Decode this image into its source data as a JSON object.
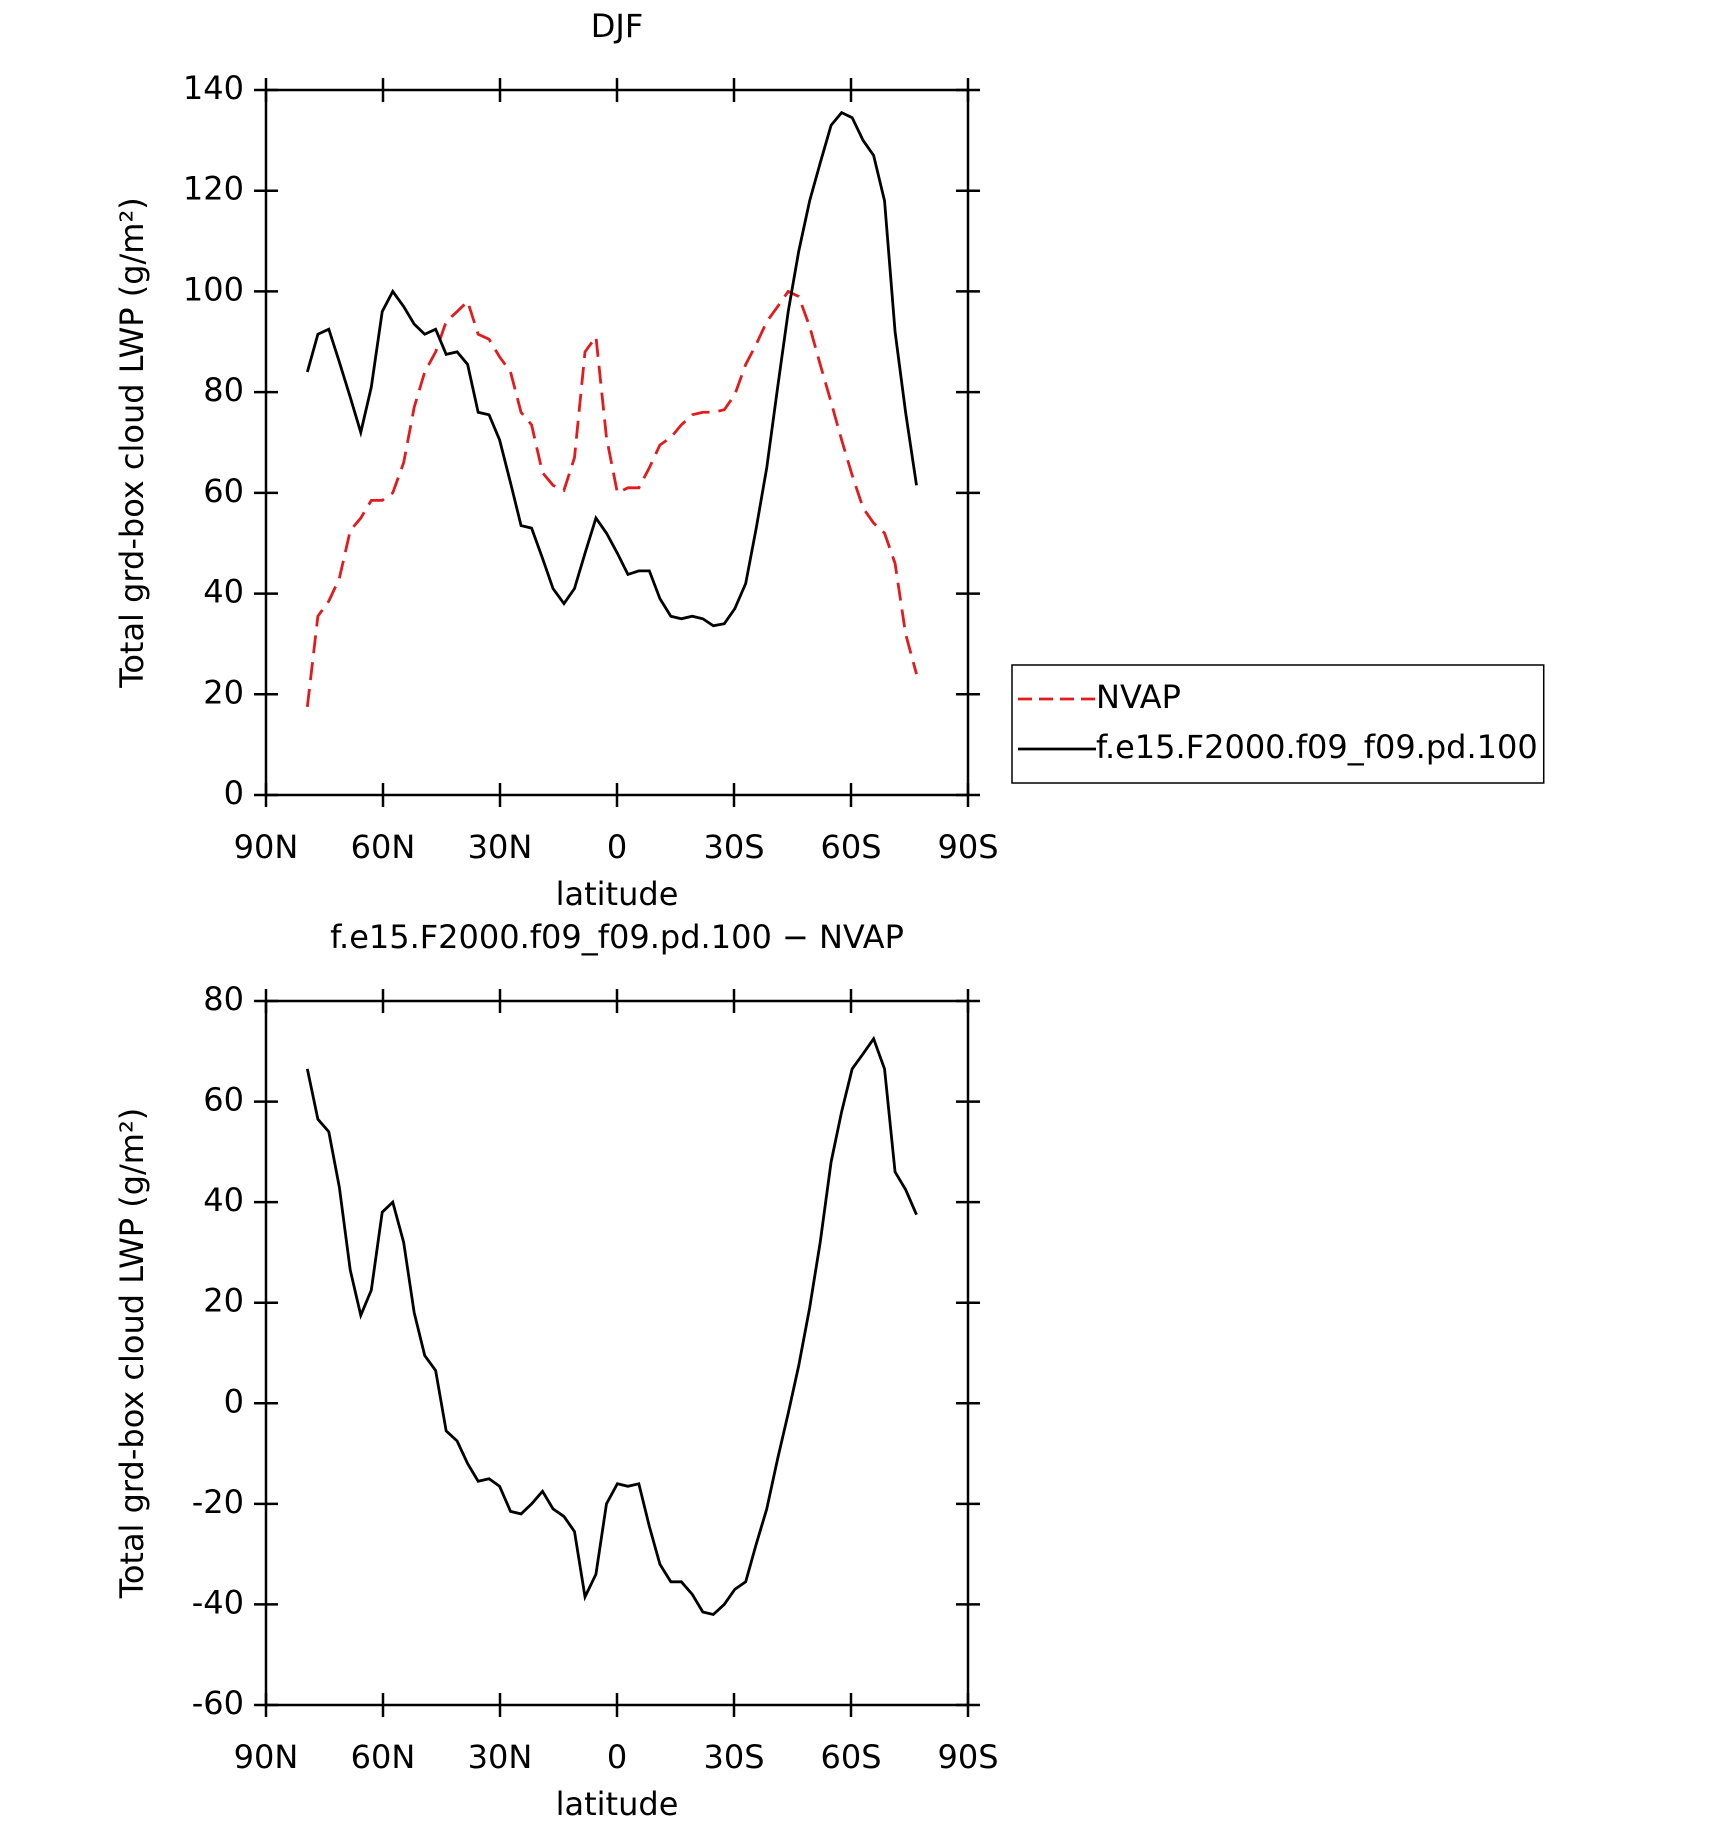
{
  "chart_data": [
    {
      "type": "line",
      "title": "DJF",
      "xlabel": "latitude",
      "ylabel": "Total grd-box cloud LWP (g/m²)",
      "x": [
        79.4,
        76.7,
        73.9,
        71.2,
        68.4,
        65.7,
        63,
        60.2,
        57.5,
        54.7,
        52,
        49.3,
        46.5,
        43.8,
        41,
        38.3,
        35.6,
        32.8,
        30.1,
        27.3,
        24.6,
        21.9,
        19.1,
        16.4,
        13.6,
        10.9,
        8.2,
        5.4,
        2.7,
        -0.1,
        -2.8,
        -5.6,
        -8.3,
        -11,
        -13.8,
        -16.5,
        -19.3,
        -22,
        -24.7,
        -27.5,
        -30.2,
        -33,
        -35.7,
        -38.4,
        -41.2,
        -43.9,
        -46.6,
        -49.4,
        -52.1,
        -54.9,
        -57.6,
        -60.3,
        -63.1,
        -65.8,
        -68.6,
        -71.3,
        -74,
        -76.8
      ],
      "series": [
        {
          "name": "NVAP",
          "color": "#e41a1c",
          "linestyle": "dashed",
          "values": [
            17.5,
            35.5,
            38.5,
            43,
            52.5,
            55,
            58.5,
            58.5,
            60,
            66,
            77,
            84,
            88,
            94,
            96,
            98,
            91.5,
            90.5,
            87,
            84,
            76,
            73.5,
            64,
            61.5,
            60.5,
            67,
            88,
            91,
            71,
            60,
            61,
            61,
            65,
            69.5,
            71,
            73.5,
            75.5,
            76,
            76,
            76.5,
            79.5,
            85.5,
            89.5,
            94,
            97,
            100,
            99,
            93,
            85.5,
            78,
            70.5,
            63.5,
            57,
            54,
            52,
            46,
            32,
            24
          ]
        },
        {
          "name": "f.e15.F2000.f09_f09.pd.100",
          "color": "#000000",
          "linestyle": "solid",
          "values": [
            84,
            91.5,
            92.5,
            86,
            79,
            72,
            81,
            96,
            100,
            97,
            93.5,
            91.5,
            92.5,
            87.5,
            88,
            85.5,
            76,
            75.5,
            70.5,
            62,
            53.5,
            53,
            47,
            41,
            38,
            41,
            48,
            55,
            52,
            48,
            43.8,
            44.5,
            44.5,
            39,
            35.5,
            35,
            35.5,
            35,
            33.6,
            34,
            37,
            42,
            53,
            65,
            81,
            96,
            108,
            118,
            125.5,
            133,
            135.5,
            134.5,
            130,
            127,
            118,
            92,
            76,
            61.5
          ]
        }
      ],
      "xlim": [
        90,
        -90
      ],
      "xticks": [
        {
          "value": 90,
          "label": "90N"
        },
        {
          "value": 60,
          "label": "60N"
        },
        {
          "value": 30,
          "label": "30N"
        },
        0,
        {
          "value": -30,
          "label": "30S"
        },
        {
          "value": -60,
          "label": "60S"
        },
        {
          "value": -90,
          "label": "90S"
        }
      ],
      "ylim": [
        0,
        140
      ],
      "yticks": [
        0,
        20,
        40,
        60,
        80,
        100,
        120,
        140
      ],
      "legend": "right"
    },
    {
      "type": "line",
      "title": "f.e15.F2000.f09_f09.pd.100 − NVAP",
      "xlabel": "latitude",
      "ylabel": "Total grd-box cloud LWP (g/m²)",
      "x": [
        79.4,
        76.7,
        73.9,
        71.2,
        68.4,
        65.7,
        63,
        60.2,
        57.5,
        54.7,
        52,
        49.3,
        46.5,
        43.8,
        41,
        38.3,
        35.6,
        32.8,
        30.1,
        27.3,
        24.6,
        21.9,
        19.1,
        16.4,
        13.6,
        10.9,
        8.2,
        5.4,
        2.7,
        -0.1,
        -2.8,
        -5.6,
        -8.3,
        -11,
        -13.8,
        -16.5,
        -19.3,
        -22,
        -24.7,
        -27.5,
        -30.2,
        -33,
        -35.7,
        -38.4,
        -41.2,
        -43.9,
        -46.6,
        -49.4,
        -52.1,
        -54.9,
        -57.6,
        -60.3,
        -63.1,
        -65.8,
        -68.6,
        -71.3,
        -74,
        -76.8
      ],
      "series": [
        {
          "color": "#000000",
          "linestyle": "solid",
          "values": [
            66.5,
            56.5,
            54,
            43,
            26.5,
            17.5,
            22.5,
            38,
            40,
            32,
            18,
            9.5,
            6.5,
            -5.5,
            -7.5,
            -12,
            -15.5,
            -15,
            -16.5,
            -21.5,
            -22,
            -20,
            -17.5,
            -21,
            -22.5,
            -25.5,
            -38.5,
            -34,
            -20,
            -16,
            -16.5,
            -16,
            -24.5,
            -32,
            -35.5,
            -35.5,
            -38,
            -41.5,
            -42,
            -40,
            -37,
            -35.5,
            -28,
            -21,
            -11,
            -2,
            7.5,
            19,
            32,
            48,
            58,
            66.5,
            69.5,
            72.5,
            66.5,
            46,
            42.5,
            37.5
          ]
        }
      ],
      "xlim": [
        90,
        -90
      ],
      "xticks": [
        {
          "value": 90,
          "label": "90N"
        },
        {
          "value": 60,
          "label": "60N"
        },
        {
          "value": 30,
          "label": "30N"
        },
        0,
        {
          "value": -30,
          "label": "30S"
        },
        {
          "value": -60,
          "label": "60S"
        },
        {
          "value": -90,
          "label": "90S"
        }
      ],
      "ylim": [
        -60,
        80
      ],
      "yticks": [
        -60,
        -40,
        -20,
        0,
        20,
        40,
        60,
        80
      ]
    }
  ]
}
